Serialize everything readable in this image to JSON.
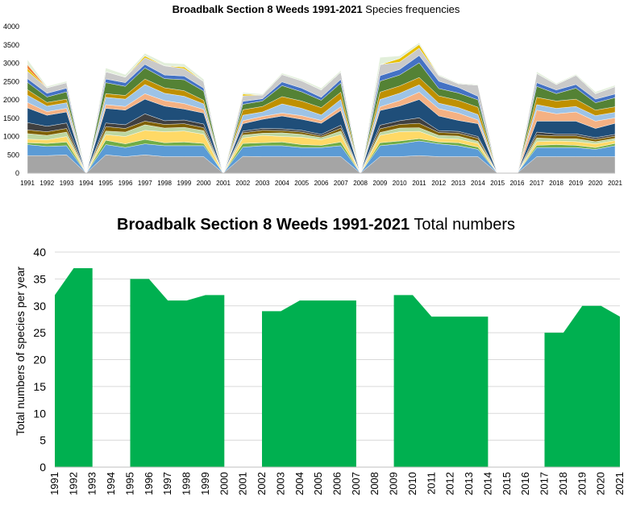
{
  "chart_data": [
    {
      "type": "area",
      "subtype": "stacked",
      "title_bold": "Broadbalk Section 8 Weeds 1991-2021",
      "title_regular": "Species frequencies",
      "xlabel": "",
      "ylabel": "",
      "ylim": [
        0,
        4000
      ],
      "yticks": [
        "0",
        "500",
        "1000",
        "1500",
        "2000",
        "2500",
        "3000",
        "3500",
        "4000"
      ],
      "grid": false,
      "legend": "none",
      "categories": [
        "1991",
        "1992",
        "1993",
        "1994",
        "1995",
        "1996",
        "1997",
        "1998",
        "1999",
        "2000",
        "2001",
        "2002",
        "2003",
        "2004",
        "2005",
        "2006",
        "2007",
        "2008",
        "2009",
        "2010",
        "2011",
        "2012",
        "2013",
        "2014",
        "2015",
        "2016",
        "2017",
        "2018",
        "2019",
        "2020",
        "2021"
      ],
      "series": [
        {
          "color": "#a5a5a5",
          "values": [
            480,
            480,
            500,
            0,
            500,
            450,
            500,
            450,
            450,
            450,
            0,
            460,
            450,
            450,
            450,
            450,
            450,
            0,
            450,
            450,
            480,
            450,
            450,
            450,
            0,
            0,
            450,
            450,
            450,
            450,
            450
          ]
        },
        {
          "color": "#5b9bd5",
          "values": [
            300,
            250,
            250,
            0,
            280,
            250,
            300,
            300,
            300,
            300,
            0,
            250,
            300,
            300,
            250,
            250,
            300,
            0,
            300,
            350,
            400,
            350,
            300,
            200,
            0,
            0,
            250,
            250,
            250,
            200,
            300
          ]
        },
        {
          "color": "#70ad47",
          "values": [
            50,
            80,
            100,
            0,
            120,
            100,
            120,
            80,
            100,
            60,
            0,
            100,
            80,
            100,
            80,
            60,
            100,
            0,
            80,
            80,
            60,
            50,
            80,
            60,
            0,
            0,
            60,
            80,
            60,
            50,
            60
          ]
        },
        {
          "color": "#ffd966",
          "values": [
            100,
            100,
            150,
            0,
            150,
            200,
            250,
            300,
            300,
            250,
            0,
            150,
            200,
            150,
            200,
            150,
            200,
            0,
            200,
            250,
            200,
            100,
            100,
            100,
            0,
            0,
            100,
            100,
            100,
            100,
            80
          ]
        },
        {
          "color": "#bdd7a0",
          "values": [
            150,
            120,
            120,
            0,
            100,
            120,
            150,
            100,
            100,
            100,
            0,
            80,
            60,
            100,
            80,
            60,
            100,
            0,
            80,
            100,
            100,
            80,
            80,
            60,
            0,
            0,
            100,
            60,
            80,
            60,
            60
          ]
        },
        {
          "color": "#7f6000",
          "values": [
            100,
            100,
            100,
            0,
            120,
            100,
            100,
            100,
            100,
            80,
            0,
            60,
            80,
            60,
            60,
            40,
            80,
            0,
            100,
            100,
            120,
            80,
            80,
            80,
            0,
            0,
            80,
            80,
            80,
            60,
            60
          ]
        },
        {
          "color": "#404040",
          "values": [
            200,
            150,
            150,
            0,
            100,
            100,
            200,
            100,
            100,
            100,
            0,
            50,
            50,
            50,
            50,
            50,
            80,
            0,
            100,
            100,
            150,
            50,
            50,
            50,
            0,
            0,
            80,
            50,
            50,
            50,
            50
          ]
        },
        {
          "color": "#1f4e79",
          "values": [
            400,
            300,
            300,
            0,
            400,
            400,
            400,
            400,
            300,
            300,
            0,
            200,
            250,
            350,
            300,
            300,
            400,
            0,
            400,
            400,
            500,
            400,
            300,
            350,
            0,
            0,
            300,
            350,
            350,
            250,
            300
          ]
        },
        {
          "color": "#f4b183",
          "values": [
            150,
            100,
            100,
            0,
            100,
            100,
            150,
            150,
            150,
            100,
            0,
            80,
            80,
            80,
            100,
            80,
            100,
            0,
            100,
            150,
            200,
            200,
            200,
            100,
            0,
            0,
            300,
            200,
            250,
            200,
            150
          ]
        },
        {
          "color": "#9dc3e6",
          "values": [
            200,
            150,
            150,
            0,
            200,
            200,
            250,
            200,
            200,
            150,
            0,
            150,
            120,
            250,
            200,
            150,
            200,
            0,
            200,
            200,
            200,
            150,
            150,
            150,
            0,
            0,
            150,
            150,
            150,
            150,
            150
          ]
        },
        {
          "color": "#bf9000",
          "values": [
            150,
            100,
            100,
            0,
            100,
            100,
            150,
            150,
            150,
            100,
            0,
            150,
            150,
            200,
            200,
            200,
            200,
            0,
            200,
            200,
            200,
            200,
            200,
            200,
            0,
            0,
            200,
            200,
            200,
            150,
            150
          ]
        },
        {
          "color": "#548235",
          "values": [
            200,
            150,
            200,
            0,
            300,
            250,
            300,
            250,
            300,
            250,
            0,
            150,
            150,
            300,
            250,
            200,
            250,
            0,
            300,
            300,
            400,
            200,
            200,
            200,
            0,
            0,
            300,
            200,
            300,
            200,
            250
          ]
        },
        {
          "color": "#4472c4",
          "values": [
            100,
            100,
            100,
            0,
            100,
            100,
            100,
            100,
            100,
            80,
            0,
            80,
            60,
            100,
            100,
            80,
            100,
            0,
            150,
            150,
            200,
            200,
            150,
            100,
            0,
            0,
            100,
            100,
            100,
            100,
            100
          ]
        },
        {
          "color": "#c9c9c9",
          "values": [
            200,
            150,
            150,
            0,
            200,
            150,
            180,
            250,
            200,
            180,
            0,
            150,
            100,
            200,
            200,
            200,
            200,
            0,
            300,
            200,
            200,
            150,
            100,
            300,
            0,
            0,
            250,
            150,
            250,
            150,
            200
          ]
        },
        {
          "color": "#e7c000",
          "values": [
            80,
            0,
            0,
            0,
            0,
            0,
            50,
            0,
            50,
            0,
            0,
            50,
            0,
            0,
            0,
            0,
            0,
            0,
            0,
            100,
            100,
            0,
            0,
            0,
            0,
            0,
            0,
            0,
            0,
            0,
            0
          ]
        },
        {
          "color": "#ed7d31",
          "values": [
            100,
            0,
            0,
            0,
            0,
            0,
            0,
            0,
            0,
            0,
            0,
            0,
            0,
            0,
            0,
            0,
            0,
            0,
            0,
            0,
            0,
            0,
            0,
            0,
            0,
            0,
            0,
            0,
            0,
            0,
            0
          ]
        },
        {
          "color": "#e2efda",
          "values": [
            140,
            40,
            40,
            0,
            100,
            70,
            70,
            80,
            80,
            60,
            0,
            40,
            30,
            40,
            40,
            50,
            40,
            0,
            200,
            70,
            50,
            30,
            20,
            20,
            0,
            0,
            50,
            30,
            30,
            50,
            40
          ]
        }
      ]
    },
    {
      "type": "area",
      "title_bold": "Broadbalk Section 8 Weeds 1991-2021",
      "title_regular": "Total numbers",
      "xlabel": "",
      "ylabel": "Total numbers of species per year",
      "ylim": [
        0,
        40
      ],
      "yticks": [
        "0",
        "5",
        "10",
        "15",
        "20",
        "25",
        "30",
        "35",
        "40"
      ],
      "grid": true,
      "legend": "none",
      "color": "#00b050",
      "categories": [
        "1991",
        "1992",
        "1993",
        "1994",
        "1995",
        "1996",
        "1997",
        "1998",
        "1999",
        "2000",
        "2001",
        "2002",
        "2003",
        "2004",
        "2005",
        "2006",
        "2007",
        "2008",
        "2009",
        "2010",
        "2011",
        "2012",
        "2013",
        "2014",
        "2015",
        "2016",
        "2017",
        "2018",
        "2019",
        "2020",
        "2021"
      ],
      "values": [
        32,
        37,
        37,
        null,
        35,
        35,
        31,
        31,
        32,
        32,
        null,
        29,
        29,
        31,
        31,
        31,
        31,
        null,
        32,
        32,
        28,
        28,
        28,
        28,
        null,
        null,
        25,
        25,
        30,
        30,
        28
      ]
    }
  ]
}
